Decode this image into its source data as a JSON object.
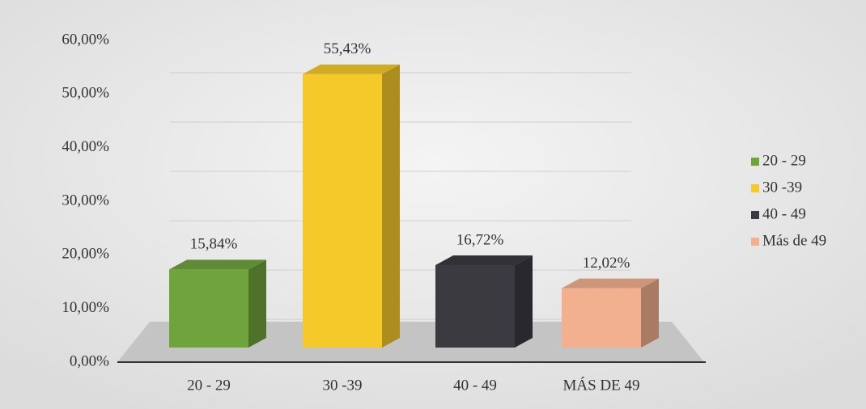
{
  "chart_data": {
    "type": "bar3d",
    "categories": [
      "20 - 29",
      "30 -39",
      "40 - 49",
      "MÁS DE 49"
    ],
    "series": [
      {
        "name": "20 - 29",
        "color": "#6fa33c",
        "values": [
          15.84,
          null,
          null,
          null
        ],
        "value_labels": [
          "15,84%",
          null,
          null,
          null
        ]
      },
      {
        "name": "30 -39",
        "color": "#f5c92a",
        "values": [
          null,
          55.43,
          null,
          null
        ],
        "value_labels": [
          null,
          "55,43%",
          null,
          null
        ]
      },
      {
        "name": "40 - 49",
        "color": "#3b3a40",
        "values": [
          null,
          null,
          16.72,
          null
        ],
        "value_labels": [
          null,
          null,
          "16,72%",
          null
        ]
      },
      {
        "name": "Más de 49",
        "color": "#f2b08e",
        "values": [
          null,
          null,
          null,
          12.02
        ],
        "value_labels": [
          null,
          null,
          null,
          "12,02%"
        ]
      }
    ],
    "ylim": [
      0,
      60
    ],
    "yticks": [
      {
        "value": 0,
        "label": "0,00%"
      },
      {
        "value": 10,
        "label": "10,00%"
      },
      {
        "value": 20,
        "label": "20,00%"
      },
      {
        "value": 30,
        "label": "30,00%"
      },
      {
        "value": 40,
        "label": "40,00%"
      },
      {
        "value": 50,
        "label": "50,00%"
      },
      {
        "value": 60,
        "label": "60,00%"
      }
    ],
    "grid": true,
    "legend": "right"
  }
}
